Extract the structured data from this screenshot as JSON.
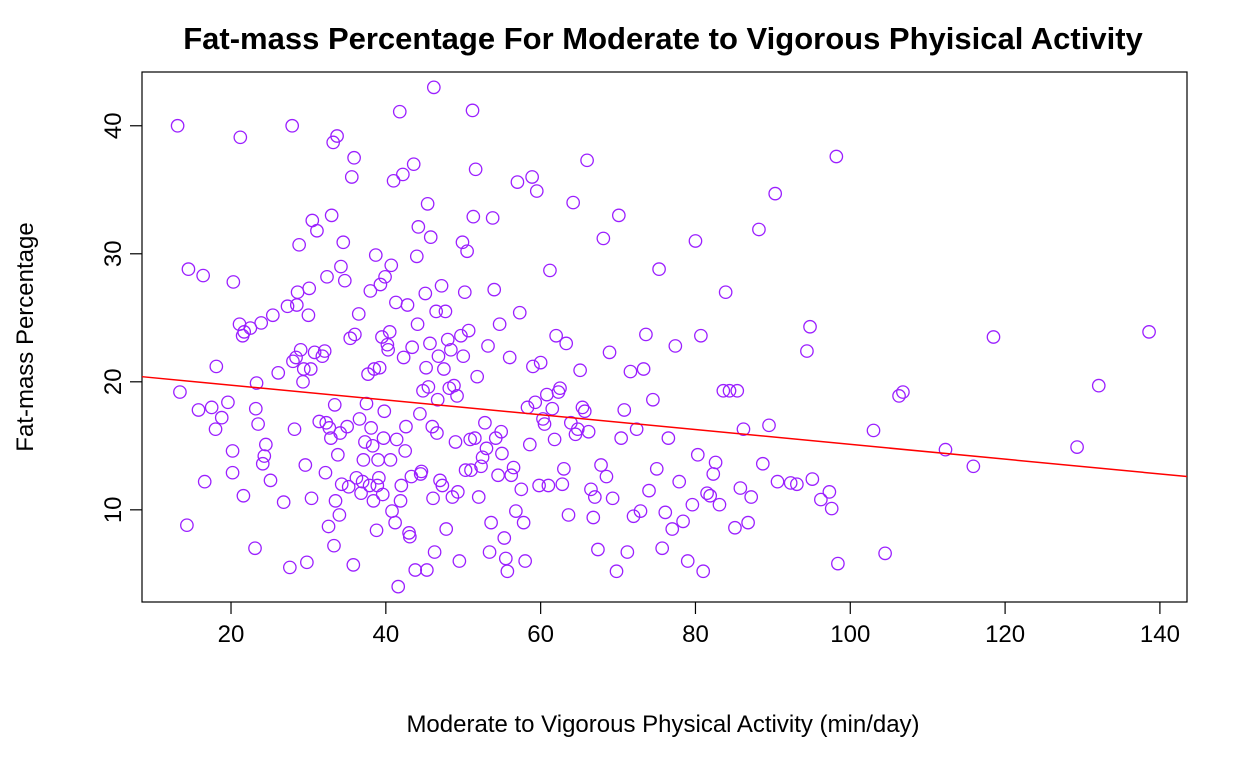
{
  "colors": {
    "points": "#9B1FFF",
    "fit_line": "#FF0000",
    "frame": "#000000"
  },
  "chart_data": {
    "type": "scatter",
    "title": "Fat-mass Percentage For Moderate to Vigorous Phyisical Activity",
    "xlabel": "Moderate to Vigorous Physical Activity (min/day)",
    "ylabel": "Fat-mass Percentage",
    "xlim": [
      8.5,
      143.5
    ],
    "ylim": [
      2.8,
      44.2
    ],
    "xticks": [
      20,
      40,
      60,
      80,
      100,
      120,
      140
    ],
    "yticks": [
      10,
      20,
      30,
      40
    ],
    "xtick_labels": [
      "20",
      "40",
      "60",
      "80",
      "100",
      "120",
      "140"
    ],
    "ytick_labels": [
      "10",
      "20",
      "30",
      "40"
    ],
    "grid": false,
    "marker": "open-circle",
    "fit_line": {
      "x1": 8.5,
      "y1": 20.4,
      "x2": 143.5,
      "y2": 12.6
    },
    "points": [
      [
        13.1,
        40.0
      ],
      [
        13.4,
        19.2
      ],
      [
        14.3,
        8.8
      ],
      [
        14.5,
        28.8
      ],
      [
        15.8,
        17.8
      ],
      [
        16.4,
        28.3
      ],
      [
        16.6,
        12.2
      ],
      [
        17.5,
        18.0
      ],
      [
        18.0,
        16.3
      ],
      [
        18.1,
        21.2
      ],
      [
        18.8,
        17.2
      ],
      [
        19.6,
        18.4
      ],
      [
        20.2,
        14.6
      ],
      [
        20.2,
        12.9
      ],
      [
        20.3,
        27.8
      ],
      [
        21.1,
        24.5
      ],
      [
        21.2,
        39.1
      ],
      [
        21.5,
        23.6
      ],
      [
        21.6,
        11.1
      ],
      [
        21.7,
        23.9
      ],
      [
        22.5,
        24.2
      ],
      [
        23.1,
        7.0
      ],
      [
        23.2,
        17.9
      ],
      [
        23.3,
        19.9
      ],
      [
        23.5,
        16.7
      ],
      [
        23.9,
        24.6
      ],
      [
        24.1,
        13.6
      ],
      [
        24.3,
        14.2
      ],
      [
        24.5,
        15.1
      ],
      [
        25.1,
        12.3
      ],
      [
        25.4,
        25.2
      ],
      [
        26.1,
        20.7
      ],
      [
        26.8,
        10.6
      ],
      [
        27.3,
        25.9
      ],
      [
        27.6,
        5.5
      ],
      [
        27.9,
        40.0
      ],
      [
        28.0,
        21.6
      ],
      [
        28.2,
        16.3
      ],
      [
        28.4,
        21.9
      ],
      [
        28.5,
        26.0
      ],
      [
        28.6,
        27.0
      ],
      [
        28.8,
        30.7
      ],
      [
        29.0,
        22.5
      ],
      [
        29.3,
        20.0
      ],
      [
        29.4,
        21.0
      ],
      [
        29.6,
        13.5
      ],
      [
        29.8,
        5.9
      ],
      [
        30.0,
        25.2
      ],
      [
        30.1,
        27.3
      ],
      [
        30.3,
        21.0
      ],
      [
        30.4,
        10.9
      ],
      [
        30.5,
        32.6
      ],
      [
        30.8,
        22.3
      ],
      [
        31.1,
        31.8
      ],
      [
        31.4,
        16.9
      ],
      [
        31.8,
        22.0
      ],
      [
        32.1,
        22.4
      ],
      [
        32.2,
        12.9
      ],
      [
        32.3,
        16.8
      ],
      [
        32.4,
        28.2
      ],
      [
        32.6,
        8.7
      ],
      [
        32.7,
        16.4
      ],
      [
        32.9,
        15.6
      ],
      [
        33.0,
        33.0
      ],
      [
        33.2,
        38.7
      ],
      [
        33.3,
        7.2
      ],
      [
        33.4,
        18.2
      ],
      [
        33.5,
        10.7
      ],
      [
        33.7,
        39.2
      ],
      [
        33.8,
        14.3
      ],
      [
        34.0,
        9.6
      ],
      [
        34.1,
        16.0
      ],
      [
        34.2,
        29.0
      ],
      [
        34.3,
        12.0
      ],
      [
        34.5,
        30.9
      ],
      [
        34.7,
        27.9
      ],
      [
        35.0,
        16.5
      ],
      [
        35.2,
        11.8
      ],
      [
        35.4,
        23.4
      ],
      [
        35.6,
        36.0
      ],
      [
        35.8,
        5.7
      ],
      [
        35.9,
        37.5
      ],
      [
        36.0,
        23.7
      ],
      [
        36.2,
        12.5
      ],
      [
        36.5,
        25.3
      ],
      [
        36.6,
        17.1
      ],
      [
        36.8,
        11.3
      ],
      [
        37.0,
        12.2
      ],
      [
        37.1,
        13.9
      ],
      [
        37.3,
        15.3
      ],
      [
        37.5,
        18.3
      ],
      [
        37.7,
        20.6
      ],
      [
        37.9,
        11.9
      ],
      [
        38.0,
        27.1
      ],
      [
        38.1,
        16.4
      ],
      [
        38.3,
        15.0
      ],
      [
        38.4,
        10.7
      ],
      [
        38.5,
        21.0
      ],
      [
        38.7,
        29.9
      ],
      [
        38.8,
        8.4
      ],
      [
        38.9,
        11.9
      ],
      [
        39.0,
        13.9
      ],
      [
        39.1,
        12.5
      ],
      [
        39.2,
        21.1
      ],
      [
        39.3,
        27.6
      ],
      [
        39.5,
        23.5
      ],
      [
        39.6,
        11.2
      ],
      [
        39.7,
        15.6
      ],
      [
        39.8,
        17.7
      ],
      [
        39.9,
        28.2
      ],
      [
        40.2,
        22.9
      ],
      [
        40.3,
        22.5
      ],
      [
        40.5,
        23.9
      ],
      [
        40.6,
        13.9
      ],
      [
        40.7,
        29.1
      ],
      [
        40.8,
        9.9
      ],
      [
        41.0,
        35.7
      ],
      [
        41.2,
        9.0
      ],
      [
        41.3,
        26.2
      ],
      [
        41.4,
        15.5
      ],
      [
        41.6,
        4.0
      ],
      [
        41.8,
        41.1
      ],
      [
        41.9,
        10.7
      ],
      [
        42.0,
        11.9
      ],
      [
        42.2,
        36.2
      ],
      [
        42.3,
        21.9
      ],
      [
        42.5,
        14.6
      ],
      [
        42.6,
        16.5
      ],
      [
        42.8,
        26.0
      ],
      [
        43.0,
        8.2
      ],
      [
        43.1,
        7.9
      ],
      [
        43.3,
        12.6
      ],
      [
        43.4,
        22.7
      ],
      [
        43.6,
        37.0
      ],
      [
        43.8,
        5.3
      ],
      [
        44.0,
        29.8
      ],
      [
        44.1,
        24.5
      ],
      [
        44.2,
        32.1
      ],
      [
        44.4,
        17.5
      ],
      [
        44.5,
        12.8
      ],
      [
        44.6,
        13.0
      ],
      [
        44.8,
        19.3
      ],
      [
        45.1,
        26.9
      ],
      [
        45.2,
        21.1
      ],
      [
        45.3,
        5.3
      ],
      [
        45.4,
        33.9
      ],
      [
        45.5,
        19.6
      ],
      [
        45.7,
        23.0
      ],
      [
        45.8,
        31.3
      ],
      [
        46.0,
        16.5
      ],
      [
        46.1,
        10.9
      ],
      [
        46.2,
        43.0
      ],
      [
        46.3,
        6.7
      ],
      [
        46.5,
        25.5
      ],
      [
        46.6,
        16.0
      ],
      [
        46.7,
        18.6
      ],
      [
        46.8,
        22.0
      ],
      [
        47.0,
        12.3
      ],
      [
        47.2,
        27.5
      ],
      [
        47.3,
        11.9
      ],
      [
        47.5,
        21.0
      ],
      [
        47.7,
        25.5
      ],
      [
        47.8,
        8.5
      ],
      [
        48.0,
        23.3
      ],
      [
        48.2,
        19.5
      ],
      [
        48.4,
        22.5
      ],
      [
        48.6,
        11.0
      ],
      [
        48.8,
        19.7
      ],
      [
        49.0,
        15.3
      ],
      [
        49.2,
        18.9
      ],
      [
        49.3,
        11.4
      ],
      [
        49.5,
        6.0
      ],
      [
        49.7,
        23.6
      ],
      [
        49.9,
        30.9
      ],
      [
        50.0,
        22.0
      ],
      [
        50.2,
        27.0
      ],
      [
        50.3,
        13.1
      ],
      [
        50.5,
        30.2
      ],
      [
        50.7,
        24.0
      ],
      [
        50.9,
        15.5
      ],
      [
        51.0,
        13.1
      ],
      [
        51.2,
        41.2
      ],
      [
        51.3,
        32.9
      ],
      [
        51.5,
        15.6
      ],
      [
        51.6,
        36.6
      ],
      [
        51.8,
        20.4
      ],
      [
        52.0,
        11.0
      ],
      [
        52.3,
        13.4
      ],
      [
        52.5,
        14.1
      ],
      [
        52.8,
        16.8
      ],
      [
        53.0,
        14.8
      ],
      [
        53.2,
        22.8
      ],
      [
        53.4,
        6.7
      ],
      [
        53.6,
        9.0
      ],
      [
        53.8,
        32.8
      ],
      [
        54.0,
        27.2
      ],
      [
        54.2,
        15.6
      ],
      [
        54.5,
        12.7
      ],
      [
        54.7,
        24.5
      ],
      [
        54.9,
        16.1
      ],
      [
        55.0,
        14.4
      ],
      [
        55.3,
        7.8
      ],
      [
        55.5,
        6.2
      ],
      [
        55.7,
        5.2
      ],
      [
        56.0,
        21.9
      ],
      [
        56.2,
        12.7
      ],
      [
        56.5,
        13.3
      ],
      [
        56.8,
        9.9
      ],
      [
        57.0,
        35.6
      ],
      [
        57.3,
        25.4
      ],
      [
        57.5,
        11.6
      ],
      [
        57.8,
        9.0
      ],
      [
        58.0,
        6.0
      ],
      [
        58.3,
        18.0
      ],
      [
        58.6,
        15.1
      ],
      [
        58.9,
        36.0
      ],
      [
        59.0,
        21.2
      ],
      [
        59.3,
        18.4
      ],
      [
        59.5,
        34.9
      ],
      [
        59.8,
        11.9
      ],
      [
        60.0,
        21.5
      ],
      [
        60.3,
        17.1
      ],
      [
        60.5,
        16.7
      ],
      [
        60.8,
        19.0
      ],
      [
        61.0,
        11.9
      ],
      [
        61.2,
        28.7
      ],
      [
        61.5,
        17.9
      ],
      [
        61.8,
        15.5
      ],
      [
        62.0,
        23.6
      ],
      [
        62.3,
        19.2
      ],
      [
        62.5,
        19.5
      ],
      [
        62.8,
        12.0
      ],
      [
        63.0,
        13.2
      ],
      [
        63.3,
        23.0
      ],
      [
        63.6,
        9.6
      ],
      [
        63.9,
        16.8
      ],
      [
        64.2,
        34.0
      ],
      [
        64.5,
        15.9
      ],
      [
        64.8,
        16.3
      ],
      [
        65.1,
        20.9
      ],
      [
        65.4,
        18.0
      ],
      [
        65.7,
        17.7
      ],
      [
        66.0,
        37.3
      ],
      [
        66.2,
        16.1
      ],
      [
        66.5,
        11.6
      ],
      [
        66.8,
        9.4
      ],
      [
        67.0,
        11.0
      ],
      [
        67.4,
        6.9
      ],
      [
        67.8,
        13.5
      ],
      [
        68.1,
        31.2
      ],
      [
        68.5,
        12.6
      ],
      [
        68.9,
        22.3
      ],
      [
        69.3,
        10.9
      ],
      [
        69.8,
        5.2
      ],
      [
        70.1,
        33.0
      ],
      [
        70.4,
        15.6
      ],
      [
        70.8,
        17.8
      ],
      [
        71.2,
        6.7
      ],
      [
        71.6,
        20.8
      ],
      [
        72.0,
        9.5
      ],
      [
        72.4,
        16.3
      ],
      [
        72.9,
        9.9
      ],
      [
        73.3,
        21.0
      ],
      [
        73.6,
        23.7
      ],
      [
        74.0,
        11.5
      ],
      [
        74.5,
        18.6
      ],
      [
        75.0,
        13.2
      ],
      [
        75.3,
        28.8
      ],
      [
        75.7,
        7.0
      ],
      [
        76.1,
        9.8
      ],
      [
        76.5,
        15.6
      ],
      [
        77.0,
        8.5
      ],
      [
        77.4,
        22.8
      ],
      [
        77.9,
        12.2
      ],
      [
        78.4,
        9.1
      ],
      [
        79.0,
        6.0
      ],
      [
        79.6,
        10.4
      ],
      [
        80.0,
        31.0
      ],
      [
        80.3,
        14.3
      ],
      [
        80.7,
        23.6
      ],
      [
        81.0,
        5.2
      ],
      [
        81.5,
        11.3
      ],
      [
        81.9,
        11.1
      ],
      [
        82.3,
        12.8
      ],
      [
        82.6,
        13.7
      ],
      [
        83.1,
        10.4
      ],
      [
        83.6,
        19.3
      ],
      [
        83.9,
        27.0
      ],
      [
        84.4,
        19.3
      ],
      [
        85.1,
        8.6
      ],
      [
        85.4,
        19.3
      ],
      [
        85.8,
        11.7
      ],
      [
        86.2,
        16.3
      ],
      [
        86.8,
        9.0
      ],
      [
        87.2,
        11.0
      ],
      [
        88.2,
        31.9
      ],
      [
        88.7,
        13.6
      ],
      [
        89.5,
        16.6
      ],
      [
        90.3,
        34.7
      ],
      [
        90.6,
        12.2
      ],
      [
        92.3,
        12.1
      ],
      [
        93.1,
        12.0
      ],
      [
        94.4,
        22.4
      ],
      [
        94.8,
        24.3
      ],
      [
        95.1,
        12.4
      ],
      [
        96.2,
        10.8
      ],
      [
        97.3,
        11.4
      ],
      [
        97.6,
        10.1
      ],
      [
        98.2,
        37.6
      ],
      [
        98.4,
        5.8
      ],
      [
        103.0,
        16.2
      ],
      [
        104.5,
        6.6
      ],
      [
        106.3,
        18.9
      ],
      [
        106.8,
        19.2
      ],
      [
        112.3,
        14.7
      ],
      [
        115.9,
        13.4
      ],
      [
        118.5,
        23.5
      ],
      [
        129.3,
        14.9
      ],
      [
        132.1,
        19.7
      ],
      [
        138.6,
        23.9
      ]
    ]
  }
}
